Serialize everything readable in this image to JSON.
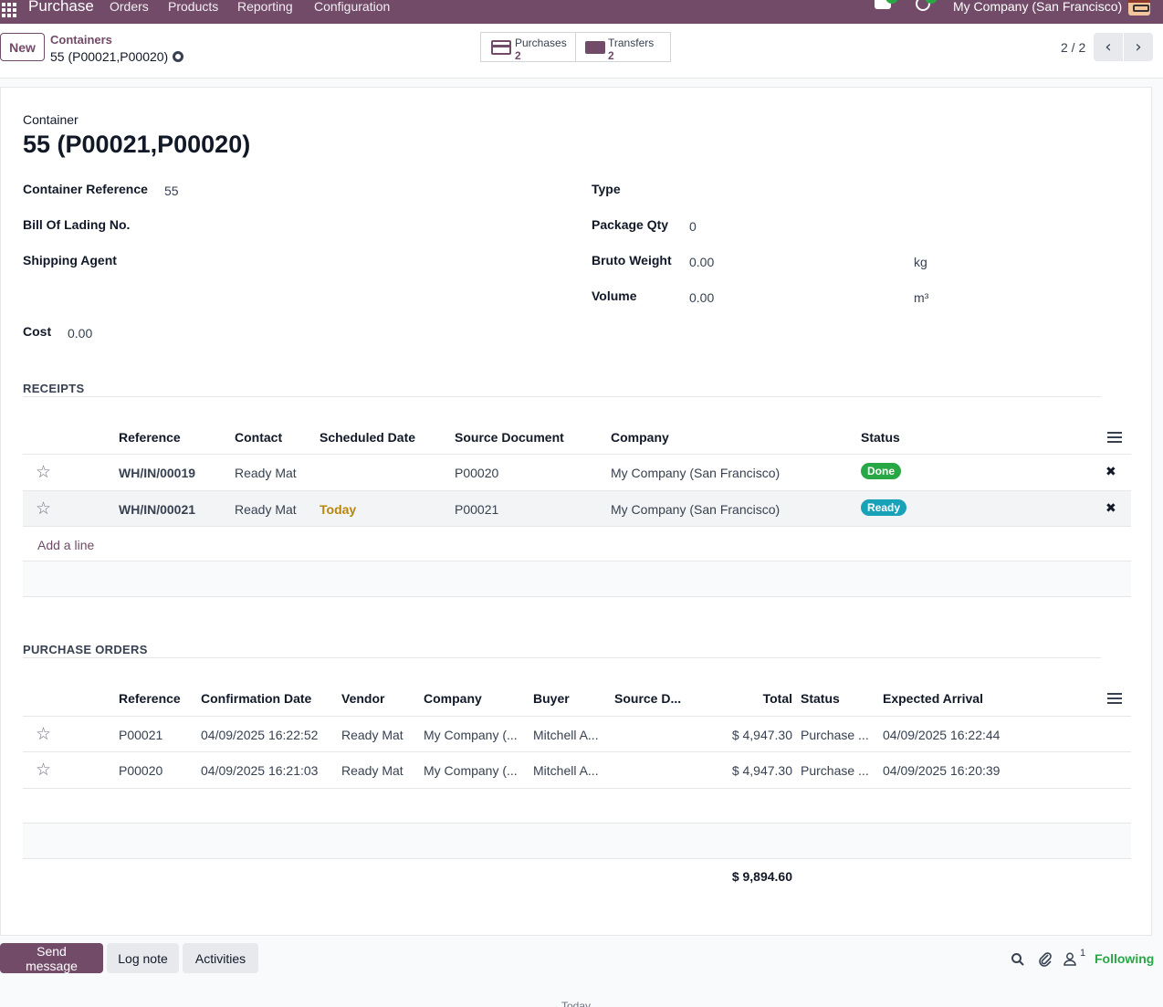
{
  "topbar": {
    "app_name": "Purchase",
    "menu": [
      "Orders",
      "Products",
      "Reporting",
      "Configuration"
    ],
    "chat_badge": "",
    "activity_badge": "",
    "company": "My Company (San Francisco)",
    "accent": "#714b67"
  },
  "control": {
    "new_label": "New",
    "breadcrumb_parent": "Containers",
    "breadcrumb_current": "55 (P00021,P00020)",
    "smart_buttons": [
      {
        "label": "Purchases",
        "value": "2",
        "icon": "credit-card-icon"
      },
      {
        "label": "Transfers",
        "value": "2",
        "icon": "truck-icon"
      }
    ],
    "pager": "2 / 2"
  },
  "form": {
    "record_label": "Container",
    "record_title": "55 (P00021,P00020)",
    "fields_left": [
      {
        "label": "Container Reference",
        "value": "55"
      },
      {
        "label": "Bill Of Lading No.",
        "value": ""
      },
      {
        "label": "Shipping Agent",
        "value": ""
      }
    ],
    "fields_right": [
      {
        "label": "Type",
        "value": "",
        "unit": ""
      },
      {
        "label": "Package Qty",
        "value": "0",
        "unit": ""
      },
      {
        "label": "Bruto Weight",
        "value": "0.00",
        "unit": "kg"
      },
      {
        "label": "Volume",
        "value": "0.00",
        "unit": "m³"
      }
    ],
    "cost_label": "Cost",
    "cost_value": "0.00"
  },
  "receipts": {
    "title": "RECEIPTS",
    "headers": [
      "Reference",
      "Contact",
      "Scheduled Date",
      "Source Document",
      "Company",
      "Status"
    ],
    "rows": [
      {
        "reference": "WH/IN/00019",
        "contact": "Ready Mat",
        "scheduled": "",
        "source": "P00020",
        "company": "My Company (San Francisco)",
        "status": "Done",
        "status_color": "#28a745"
      },
      {
        "reference": "WH/IN/00021",
        "contact": "Ready Mat",
        "scheduled": "Today",
        "source": "P00021",
        "company": "My Company (San Francisco)",
        "status": "Ready",
        "status_color": "#17a2b8"
      }
    ],
    "add_line": "Add a line"
  },
  "purchase_orders": {
    "title": "PURCHASE ORDERS",
    "headers": [
      "Reference",
      "Confirmation Date",
      "Vendor",
      "Company",
      "Buyer",
      "Source D...",
      "Total",
      "Status",
      "Expected Arrival"
    ],
    "rows": [
      {
        "reference": "P00021",
        "confirmation": "04/09/2025 16:22:52",
        "vendor": "Ready Mat",
        "company": "My Company (...",
        "buyer": "Mitchell A...",
        "source": "",
        "total": "$ 4,947.30",
        "status": "Purchase ...",
        "arrival": "04/09/2025 16:22:44"
      },
      {
        "reference": "P00020",
        "confirmation": "04/09/2025 16:21:03",
        "vendor": "Ready Mat",
        "company": "My Company (...",
        "buyer": "Mitchell A...",
        "source": "",
        "total": "$ 4,947.30",
        "status": "Purchase ...",
        "arrival": "04/09/2025 16:20:39"
      }
    ],
    "grand_total": "$ 9,894.60"
  },
  "chatter": {
    "send_message": "Send message",
    "log_note": "Log note",
    "activities": "Activities",
    "followers_count": "1",
    "following": "Following",
    "today": "Today"
  }
}
